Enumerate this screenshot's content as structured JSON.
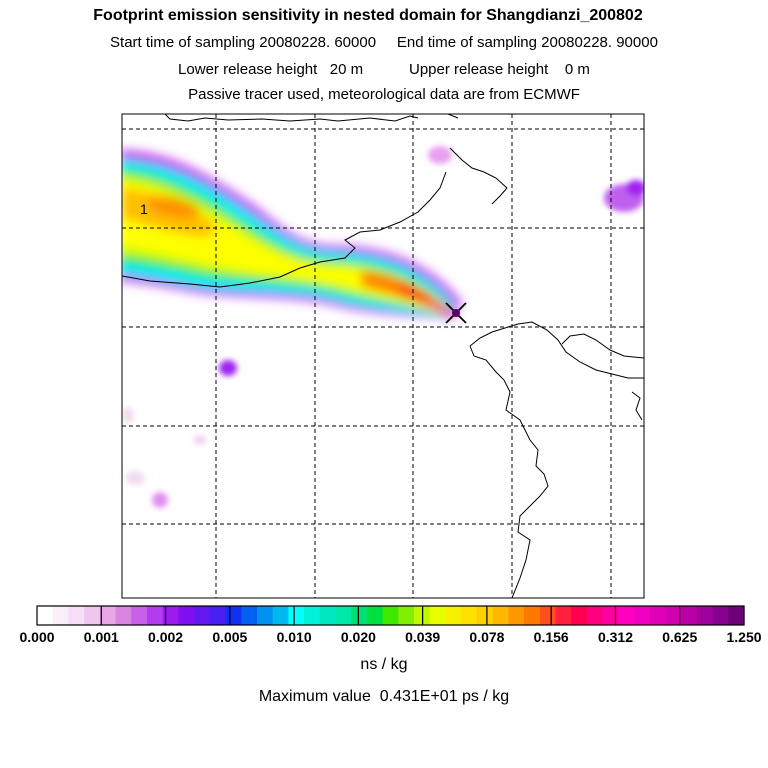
{
  "header": {
    "title": "Footprint emission sensitivity in nested domain for Shangdianzi_200802",
    "start_label": "Start time of sampling 20080228. 60000",
    "end_label": "End time of sampling 20080228. 90000",
    "lower_label": "Lower release height   20 m",
    "upper_label": "Upper release height    0 m",
    "tracer_label": "Passive tracer used, meteorological data are from ECMWF"
  },
  "map": {
    "contour_label": "1",
    "release_marker": "x-marker-icon"
  },
  "colorbar": {
    "ticks": [
      "0.000",
      "0.001",
      "0.002",
      "0.005",
      "0.010",
      "0.020",
      "0.039",
      "0.078",
      "0.156",
      "0.312",
      "0.625",
      "1.250"
    ],
    "colors": [
      "#ffffff",
      "#fbeefb",
      "#f6dcf6",
      "#efc6ef",
      "#e8a8e8",
      "#d884e0",
      "#c860e8",
      "#b43cf0",
      "#9c1cf0",
      "#8010f0",
      "#6418f0",
      "#4820f0",
      "#1030f0",
      "#0060f0",
      "#0090f0",
      "#00b8f0",
      "#00ffff",
      "#00f0d8",
      "#00e8c0",
      "#00e8a8",
      "#00e070",
      "#00e040",
      "#40e800",
      "#80f000",
      "#c0f800",
      "#e8ff00",
      "#f8f000",
      "#ffe000",
      "#ffd000",
      "#ffb800",
      "#ff9800",
      "#ff7800",
      "#ff5020",
      "#ff2040",
      "#ff0050",
      "#ff0080",
      "#ff00a0",
      "#ff00c0",
      "#f000c0",
      "#e000b8",
      "#d000b0",
      "#b800a8",
      "#a0009c",
      "#880090",
      "#6c0078"
    ],
    "unit": "ns / kg",
    "max_text": "Maximum value  0.431E+01 ps / kg"
  }
}
